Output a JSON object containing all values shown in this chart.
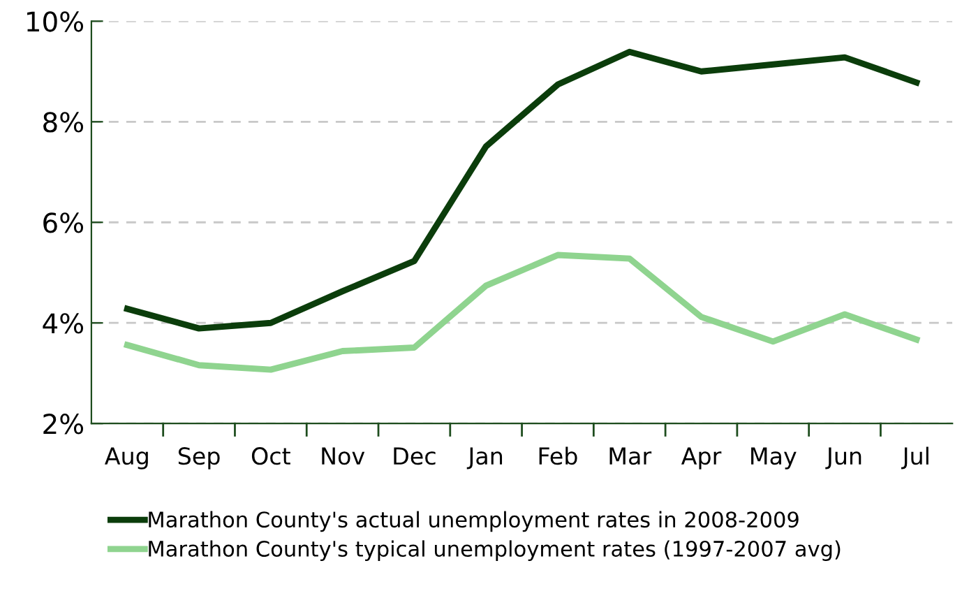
{
  "chart_data": {
    "type": "line",
    "categories": [
      "Aug",
      "Sep",
      "Oct",
      "Nov",
      "Dec",
      "Jan",
      "Feb",
      "Mar",
      "Apr",
      "May",
      "Jun",
      "Jul"
    ],
    "series": [
      {
        "name": "Marathon County's actual unemployment rates in 2008-2009",
        "color": "#0b3d0b",
        "values": [
          4.28,
          3.89,
          4.0,
          4.63,
          5.23,
          7.51,
          8.74,
          9.39,
          9.0,
          9.14,
          9.28,
          8.78
        ]
      },
      {
        "name": "Marathon County's typical unemployment rates (1997-2007 avg)",
        "color": "#8fd48f",
        "values": [
          3.56,
          3.16,
          3.07,
          3.44,
          3.51,
          4.74,
          5.35,
          5.28,
          4.12,
          3.63,
          4.17,
          3.67
        ]
      }
    ],
    "ylim": [
      2,
      10
    ],
    "yticks": [
      {
        "value": 2,
        "label": "2%"
      },
      {
        "value": 4,
        "label": "4%"
      },
      {
        "value": 6,
        "label": "6%"
      },
      {
        "value": 8,
        "label": "8%"
      },
      {
        "value": 10,
        "label": "10%"
      }
    ],
    "grid": "y",
    "legend": "bottom",
    "marker": "none",
    "line_style": "solid"
  }
}
